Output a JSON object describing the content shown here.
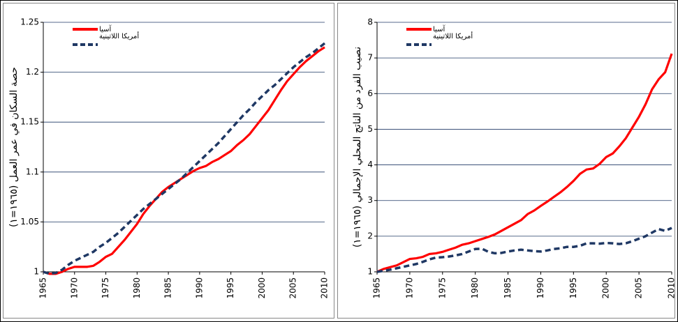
{
  "chart_data": [
    {
      "type": "line",
      "y_label": "حصة السكان في عمر العمل (١٩٦٥=١)",
      "x": [
        1965,
        1966,
        1967,
        1968,
        1969,
        1970,
        1971,
        1972,
        1973,
        1974,
        1975,
        1976,
        1977,
        1978,
        1979,
        1980,
        1981,
        1982,
        1983,
        1984,
        1985,
        1986,
        1987,
        1988,
        1989,
        1990,
        1991,
        1992,
        1993,
        1994,
        1995,
        1996,
        1997,
        1998,
        1999,
        2000,
        2001,
        2002,
        2003,
        2004,
        2005,
        2006,
        2007,
        2008,
        2009,
        2010
      ],
      "series": [
        {
          "name": "آسيا",
          "color": "#ff0000",
          "dashed": false,
          "values": [
            1.0,
            0.998,
            0.998,
            1.0,
            1.003,
            1.005,
            1.005,
            1.005,
            1.006,
            1.01,
            1.015,
            1.018,
            1.025,
            1.032,
            1.04,
            1.048,
            1.058,
            1.066,
            1.073,
            1.08,
            1.085,
            1.089,
            1.093,
            1.097,
            1.101,
            1.104,
            1.106,
            1.11,
            1.113,
            1.117,
            1.121,
            1.127,
            1.132,
            1.138,
            1.146,
            1.154,
            1.162,
            1.172,
            1.182,
            1.191,
            1.198,
            1.205,
            1.211,
            1.216,
            1.221,
            1.225
          ]
        },
        {
          "name": "أمريكا اللاتينية",
          "color": "#1f3864",
          "dashed": true,
          "values": [
            1.0,
            0.998,
            0.999,
            1.002,
            1.007,
            1.011,
            1.014,
            1.017,
            1.02,
            1.025,
            1.029,
            1.034,
            1.039,
            1.045,
            1.051,
            1.057,
            1.063,
            1.068,
            1.073,
            1.078,
            1.083,
            1.088,
            1.093,
            1.099,
            1.105,
            1.111,
            1.117,
            1.123,
            1.129,
            1.136,
            1.143,
            1.15,
            1.157,
            1.163,
            1.17,
            1.176,
            1.182,
            1.187,
            1.193,
            1.199,
            1.205,
            1.21,
            1.215,
            1.219,
            1.224,
            1.229
          ]
        }
      ],
      "xlim": [
        1965,
        2010
      ],
      "xticks": [
        1965,
        1970,
        1975,
        1980,
        1985,
        1990,
        1995,
        2000,
        2005,
        2010
      ],
      "ylim": [
        1,
        1.25
      ],
      "yticks": [
        1,
        1.05,
        1.1,
        1.15,
        1.2,
        1.25
      ],
      "grid": true,
      "legend": "upper left"
    },
    {
      "type": "line",
      "y_label": "نصيب الفرد من الناتج المحلي الإجمالي (١٩٦٥=١)",
      "x": [
        1965,
        1966,
        1967,
        1968,
        1969,
        1970,
        1971,
        1972,
        1973,
        1974,
        1975,
        1976,
        1977,
        1978,
        1979,
        1980,
        1981,
        1982,
        1983,
        1984,
        1985,
        1986,
        1987,
        1988,
        1989,
        1990,
        1991,
        1992,
        1993,
        1994,
        1995,
        1996,
        1997,
        1998,
        1999,
        2000,
        2001,
        2002,
        2003,
        2004,
        2005,
        2006,
        2007,
        2008,
        2009,
        2010
      ],
      "series": [
        {
          "name": "آسيا",
          "color": "#ff0000",
          "dashed": false,
          "values": [
            1.0,
            1.08,
            1.13,
            1.18,
            1.27,
            1.36,
            1.38,
            1.42,
            1.5,
            1.52,
            1.56,
            1.62,
            1.68,
            1.76,
            1.8,
            1.86,
            1.92,
            1.98,
            2.05,
            2.15,
            2.25,
            2.35,
            2.45,
            2.62,
            2.72,
            2.85,
            2.97,
            3.1,
            3.23,
            3.38,
            3.55,
            3.75,
            3.87,
            3.9,
            4.03,
            4.22,
            4.32,
            4.52,
            4.75,
            5.05,
            5.35,
            5.7,
            6.12,
            6.4,
            6.6,
            7.12
          ]
        },
        {
          "name": "أمريكا اللاتينية",
          "color": "#1f3864",
          "dashed": true,
          "values": [
            1.0,
            1.03,
            1.06,
            1.1,
            1.14,
            1.18,
            1.22,
            1.28,
            1.35,
            1.4,
            1.41,
            1.43,
            1.46,
            1.5,
            1.57,
            1.64,
            1.65,
            1.56,
            1.52,
            1.53,
            1.57,
            1.6,
            1.62,
            1.6,
            1.58,
            1.57,
            1.6,
            1.64,
            1.66,
            1.7,
            1.7,
            1.73,
            1.8,
            1.8,
            1.79,
            1.81,
            1.8,
            1.78,
            1.8,
            1.86,
            1.93,
            2.0,
            2.1,
            2.2,
            2.15,
            2.23
          ]
        }
      ],
      "xlim": [
        1965,
        2010
      ],
      "xticks": [
        1965,
        1970,
        1975,
        1980,
        1985,
        1990,
        1995,
        2000,
        2005,
        2010
      ],
      "ylim": [
        1,
        8
      ],
      "yticks": [
        1,
        2,
        3,
        4,
        5,
        6,
        7,
        8
      ],
      "grid": true,
      "legend": "upper left"
    }
  ]
}
